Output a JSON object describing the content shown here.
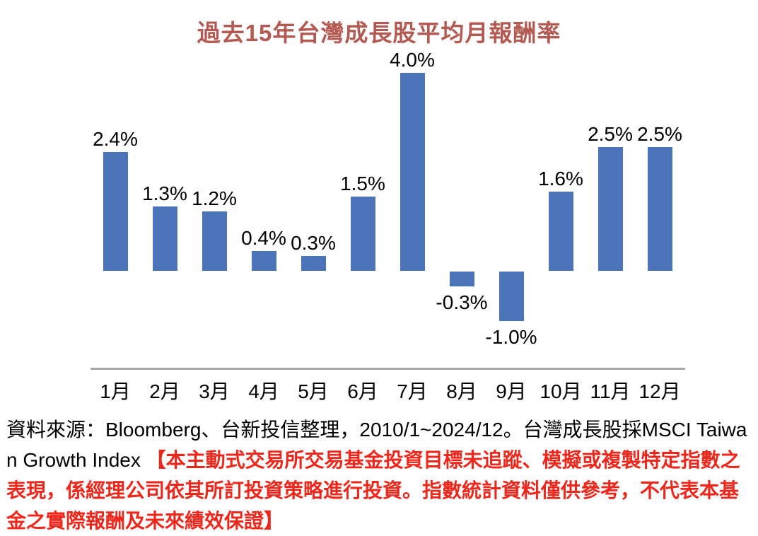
{
  "title": {
    "text": "過去15年台灣成長股平均月報酬率",
    "color": "#B55A52"
  },
  "chart_data": {
    "type": "bar",
    "title": "過去15年台灣成長股平均月報酬率",
    "categories": [
      "1月",
      "2月",
      "3月",
      "4月",
      "5月",
      "6月",
      "7月",
      "8月",
      "9月",
      "10月",
      "11月",
      "12月"
    ],
    "values": [
      2.4,
      1.3,
      1.2,
      0.4,
      0.3,
      1.5,
      4.0,
      -0.3,
      -1.0,
      1.6,
      2.5,
      2.5
    ],
    "value_labels": [
      "2.4%",
      "1.3%",
      "1.2%",
      "0.4%",
      "0.3%",
      "1.5%",
      "4.0%",
      "-0.3%",
      "-1.0%",
      "1.6%",
      "2.5%",
      "2.5%"
    ],
    "xlabel": "",
    "ylabel": "",
    "ylim": [
      -2.0,
      4.5
    ],
    "grid": false,
    "legend": "none",
    "data_labels": true,
    "bar_color": "#4A73BA",
    "axis_line_color": "#A7A7A7",
    "label_color": "#000000"
  },
  "footer": {
    "source_text": "資料來源：Bloomberg、台新投信整理，2010/1~2024/12。台灣成長股採MSCI Taiwan Growth Index ",
    "disclaimer_text": "【本主動式交易所交易基金投資目標未追蹤、模擬或複製特定指數之表現，係經理公司依其所訂投資策略進行投資。指數統計資料僅供參考，不代表本基金之實際報酬及未來績效保證】",
    "disclaimer_color": "#F0261B",
    "source_color": "#000000"
  }
}
